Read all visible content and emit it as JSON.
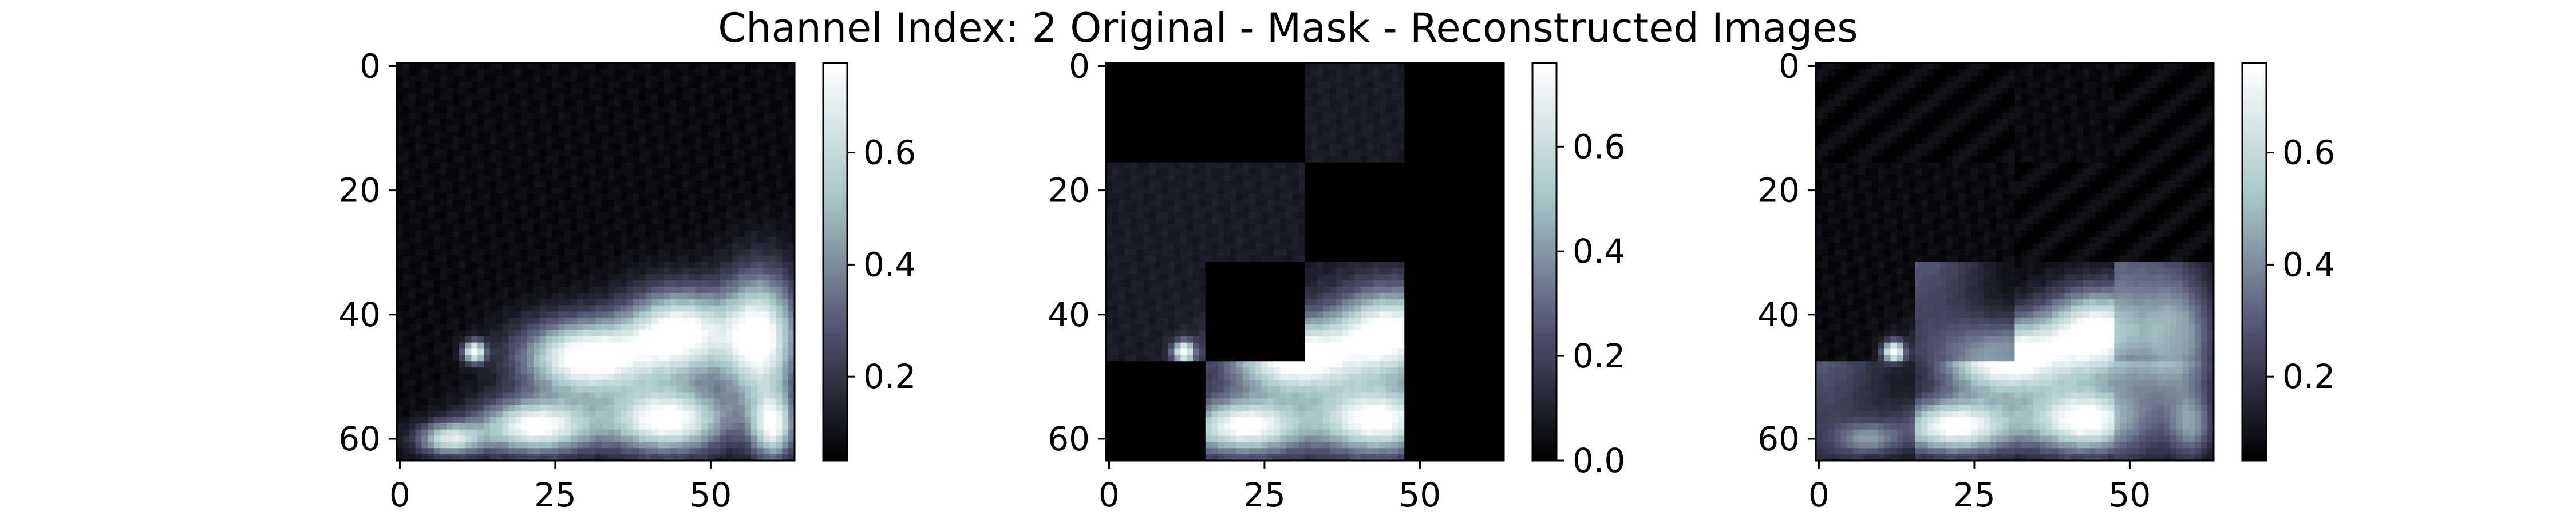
{
  "title": "Channel Index: 2 Original - Mask - Reconstructed Images",
  "colormap": {
    "name": "bone",
    "stops": [
      "#000000",
      "#545474",
      "#a7c7c7",
      "#ffffff"
    ]
  },
  "chart_data": [
    {
      "type": "heatmap",
      "panel": "Original",
      "grid_size": 64,
      "x_ticks": [
        0,
        25,
        50
      ],
      "y_ticks": [
        0,
        20,
        40,
        60
      ],
      "colorbar": {
        "min": 0.05,
        "max": 0.76,
        "ticks": [
          0.2,
          0.4,
          0.6
        ],
        "tick_labels": [
          "0.2",
          "0.4",
          "0.6"
        ]
      },
      "background_level": 0.08,
      "blobs": [
        {
          "x": 30,
          "y": 47,
          "rx": 12,
          "ry": 7,
          "v": 0.75
        },
        {
          "x": 45,
          "y": 43,
          "rx": 10,
          "ry": 8,
          "v": 0.72
        },
        {
          "x": 58,
          "y": 44,
          "rx": 7,
          "ry": 12,
          "v": 0.7
        },
        {
          "x": 22,
          "y": 58,
          "rx": 11,
          "ry": 5,
          "v": 0.7
        },
        {
          "x": 43,
          "y": 57,
          "rx": 11,
          "ry": 6,
          "v": 0.72
        },
        {
          "x": 8,
          "y": 60,
          "rx": 6,
          "ry": 3,
          "v": 0.55
        },
        {
          "x": 12,
          "y": 46,
          "rx": 2,
          "ry": 2,
          "v": 0.72
        },
        {
          "x": 60,
          "y": 58,
          "rx": 4,
          "ry": 6,
          "v": 0.6
        }
      ],
      "masked_patches": []
    },
    {
      "type": "heatmap",
      "panel": "Mask",
      "grid_size": 64,
      "x_ticks": [
        0,
        25,
        50
      ],
      "y_ticks": [
        0,
        20,
        40,
        60
      ],
      "colorbar": {
        "min": 0.0,
        "max": 0.76,
        "ticks": [
          0.0,
          0.2,
          0.4,
          0.6
        ],
        "tick_labels": [
          "0.0",
          "0.2",
          "0.4",
          "0.6"
        ]
      },
      "patch_size": 16,
      "masked_patches": [
        [
          0,
          0
        ],
        [
          0,
          1
        ],
        [
          0,
          3
        ],
        [
          1,
          2
        ],
        [
          1,
          3
        ],
        [
          2,
          1
        ],
        [
          2,
          3
        ],
        [
          3,
          0
        ],
        [
          3,
          3
        ]
      ]
    },
    {
      "type": "heatmap",
      "panel": "Reconstructed",
      "grid_size": 64,
      "x_ticks": [
        0,
        25,
        50
      ],
      "y_ticks": [
        0,
        20,
        40,
        60
      ],
      "colorbar": {
        "min": 0.05,
        "max": 0.76,
        "ticks": [
          0.2,
          0.4,
          0.6
        ],
        "tick_labels": [
          "0.2",
          "0.4",
          "0.6"
        ]
      },
      "patch_size": 16,
      "masked_patches": [
        [
          0,
          0
        ],
        [
          0,
          1
        ],
        [
          0,
          3
        ],
        [
          1,
          2
        ],
        [
          1,
          3
        ],
        [
          2,
          1
        ],
        [
          2,
          3
        ],
        [
          3,
          0
        ],
        [
          3,
          3
        ]
      ]
    }
  ]
}
